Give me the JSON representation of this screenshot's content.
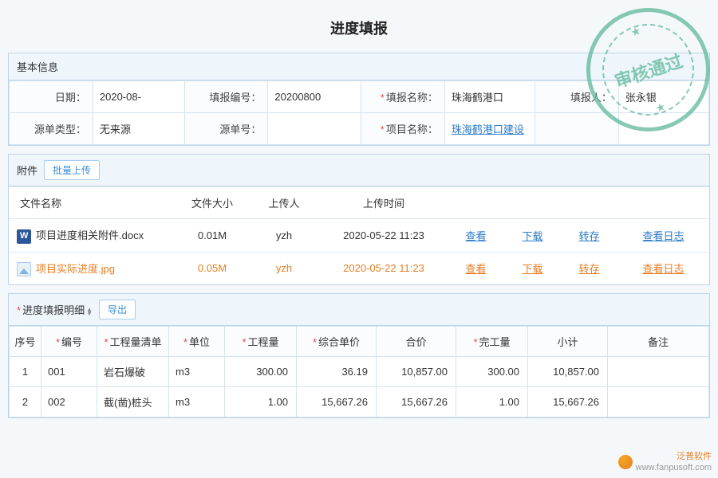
{
  "title": "进度填报",
  "stamp_text": "审核通过",
  "basic": {
    "header": "基本信息",
    "fields": {
      "date_label": "日期：",
      "date_value": "2020-08-",
      "no_label": "填报编号：",
      "no_value": "20200800",
      "name_label": "填报名称：",
      "name_value": "珠海鹤港口",
      "reporter_label": "填报人：",
      "reporter_value": "张永银",
      "src_type_label": "源单类型：",
      "src_type_value": "无来源",
      "src_no_label": "源单号：",
      "src_no_value": "",
      "project_label": "项目名称：",
      "project_value": "珠海鹤港口建设"
    }
  },
  "attachments": {
    "header": "附件",
    "upload_btn": "批量上传",
    "columns": {
      "c1": "文件名称",
      "c2": "文件大小",
      "c3": "上传人",
      "c4": "上传时间"
    },
    "actions": {
      "view": "查看",
      "download": "下载",
      "save": "转存",
      "log": "查看日志"
    },
    "rows": [
      {
        "name": "项目进度相关附件.docx",
        "size": "0.01M",
        "uploader": "yzh",
        "time": "2020-05-22 11:23",
        "type": "docx",
        "highlight": false
      },
      {
        "name": "项目实际进度.jpg",
        "size": "0.05M",
        "uploader": "yzh",
        "time": "2020-05-22 11:23",
        "type": "img",
        "highlight": true
      }
    ]
  },
  "detail": {
    "header": "进度填报明细",
    "export_btn": "导出",
    "columns": {
      "seq": "序号",
      "code": "编号",
      "item": "工程量清单",
      "unit": "单位",
      "qty": "工程量",
      "price": "综合单价",
      "total": "合价",
      "done": "完工量",
      "sub": "小计",
      "remark": "备注"
    },
    "rows": [
      {
        "seq": "1",
        "code": "001",
        "item": "岩石爆破",
        "unit": "m3",
        "qty": "300.00",
        "price": "36.19",
        "total": "10,857.00",
        "done": "300.00",
        "sub": "10,857.00",
        "remark": ""
      },
      {
        "seq": "2",
        "code": "002",
        "item": "截(凿)桩头",
        "unit": "m3",
        "qty": "1.00",
        "price": "15,667.26",
        "total": "15,667.26",
        "done": "1.00",
        "sub": "15,667.26",
        "remark": ""
      }
    ]
  },
  "watermark": {
    "brand": "泛普软件",
    "url": "www.fanpusoft.com"
  },
  "colors": {
    "border": "#bdd4e8",
    "link": "#2a7ac7",
    "orange": "#e67e22",
    "stamp": "#5fb89a"
  }
}
